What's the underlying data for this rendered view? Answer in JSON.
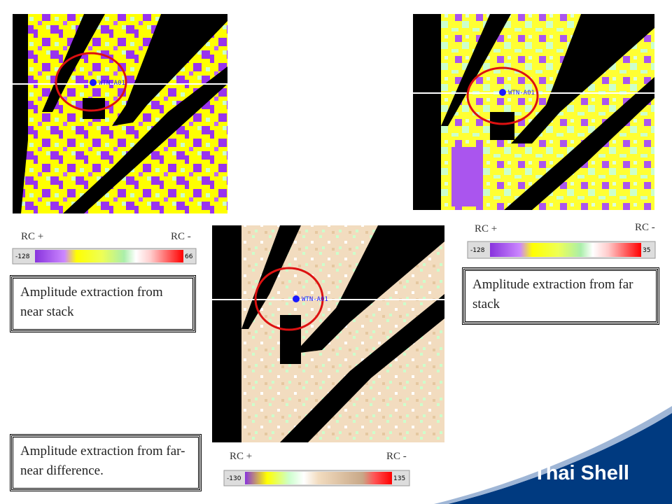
{
  "panels": [
    {
      "well_label": "WTN-A01",
      "scale": {
        "left_label": "RC +",
        "right_label": "RC -",
        "min": -128,
        "max": 66
      },
      "caption": "Amplitude extraction from near stack"
    },
    {
      "well_label": "WTN-A01",
      "scale": {
        "left_label": "RC +",
        "right_label": "RC -",
        "min": -128,
        "max": 35
      },
      "caption": "Amplitude extraction from far stack"
    },
    {
      "well_label": "WTN-A01",
      "scale": {
        "left_label": "RC +",
        "right_label": "RC -",
        "min": -130,
        "max": 135
      },
      "caption": "Amplitude extraction from far-near difference."
    }
  ],
  "footer": {
    "brand": "Thai Shell"
  }
}
